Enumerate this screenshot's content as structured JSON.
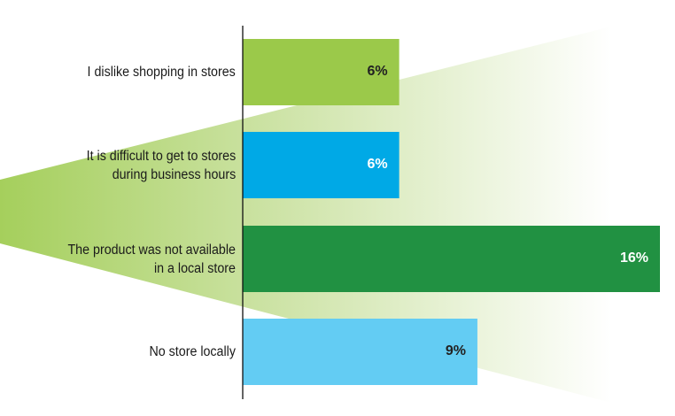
{
  "chart_data": {
    "type": "bar",
    "orientation": "horizontal",
    "categories": [
      "I dislike shopping in stores",
      "It is difficult to get to stores during business hours",
      "The product was not available in a local store",
      "No store locally"
    ],
    "category_lines": [
      [
        "I dislike shopping in stores"
      ],
      [
        "It is difficult to get to stores",
        "during business hours"
      ],
      [
        "The product was not available",
        "in a local store"
      ],
      [
        "No store locally"
      ]
    ],
    "values": [
      6,
      6,
      16,
      9
    ],
    "value_labels": [
      "6%",
      "6%",
      "16%",
      "9%"
    ],
    "unit": "%",
    "bar_colors": [
      "#9bc94a",
      "#00a9e6",
      "#219142",
      "#63ccf3"
    ],
    "label_colors": [
      "#222222",
      "#ffffff",
      "#ffffff",
      "#222222"
    ],
    "xlim": [
      0,
      16
    ],
    "grid": false,
    "background_wedge_color": "#a5cf5c"
  }
}
